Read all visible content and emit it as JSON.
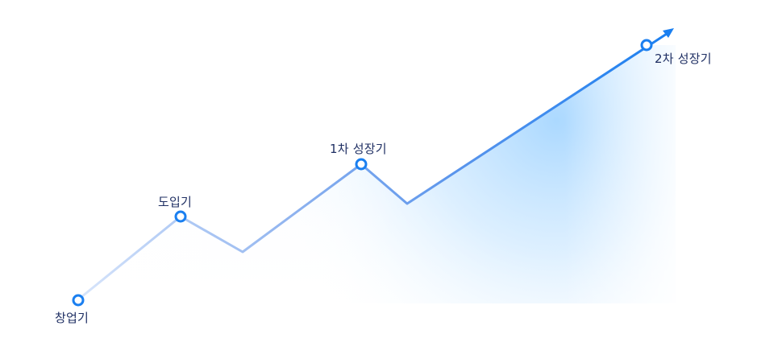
{
  "stages": [
    {
      "label": "창업기"
    },
    {
      "label": "도입기"
    },
    {
      "label": "1차 성장기"
    },
    {
      "label": "2차 성장기"
    }
  ],
  "colors": {
    "line_start": "#b9d3f7",
    "line_end": "#1a7ff0",
    "marker": "#1a7ff0",
    "area": "#cfe9ff",
    "label_text": "#1f2f63"
  }
}
